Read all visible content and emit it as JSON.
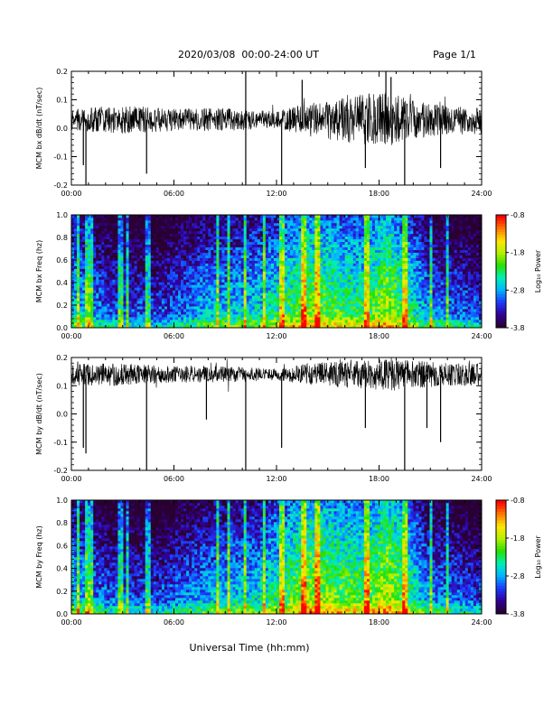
{
  "header": {
    "title": "2020/03/08  00:00-24:00 UT",
    "page": "Page 1/1"
  },
  "xlabel": "Universal Time (hh:mm)",
  "x_ticks": [
    "00:00",
    "06:00",
    "12:00",
    "18:00",
    "24:00"
  ],
  "colors": {
    "trace": "#000000",
    "colormap": [
      "#2a0030",
      "#30009a",
      "#1a3cff",
      "#00b4ff",
      "#00f0b4",
      "#28e000",
      "#b4f000",
      "#ffe600",
      "#ff7800",
      "#ff0000"
    ]
  },
  "chart_data": [
    {
      "type": "line",
      "title": "",
      "xlabel": "Universal Time (hh:mm)",
      "ylabel": "MCM bx dB/dt (nT/sec)",
      "x_range_hours": [
        0,
        24
      ],
      "ylim": [
        -0.2,
        0.2
      ],
      "y_ticks": [
        "-0.2",
        "-0.1",
        "0.0",
        "0.1",
        "0.2"
      ],
      "baseline": 0.03,
      "noise_envelope": [
        {
          "x": 0,
          "y": 0.04
        },
        {
          "x": 3,
          "y": 0.05
        },
        {
          "x": 6,
          "y": 0.04
        },
        {
          "x": 9,
          "y": 0.04
        },
        {
          "x": 12,
          "y": 0.03
        },
        {
          "x": 14,
          "y": 0.06
        },
        {
          "x": 17,
          "y": 0.09
        },
        {
          "x": 18.5,
          "y": 0.1
        },
        {
          "x": 20,
          "y": 0.07
        },
        {
          "x": 22,
          "y": 0.05
        },
        {
          "x": 24,
          "y": 0.04
        }
      ],
      "spikes": [
        {
          "x": 0.7,
          "y": -0.13
        },
        {
          "x": 0.85,
          "y": -0.2
        },
        {
          "x": 4.4,
          "y": -0.16
        },
        {
          "x": 10.2,
          "y": -0.2
        },
        {
          "x": 10.2,
          "y": 0.2
        },
        {
          "x": 12.3,
          "y": -0.2
        },
        {
          "x": 17.2,
          "y": -0.14
        },
        {
          "x": 19.5,
          "y": -0.2
        },
        {
          "x": 21.6,
          "y": -0.14
        },
        {
          "x": 18.4,
          "y": 0.2
        },
        {
          "x": 18.7,
          "y": 0.18
        },
        {
          "x": 13.5,
          "y": 0.17
        }
      ]
    },
    {
      "type": "heatmap",
      "title": "",
      "xlabel": "Universal Time (hh:mm)",
      "ylabel": "MCM bx Freq (hz)",
      "x_range_hours": [
        0,
        24
      ],
      "ylim": [
        0.0,
        1.0
      ],
      "y_ticks": [
        "0.0",
        "0.2",
        "0.4",
        "0.6",
        "0.8",
        "1.0"
      ],
      "colorbar": {
        "label": "Log₁₀ Power",
        "ticks": [
          "-0.8",
          "-1.8",
          "-2.8",
          "-3.8"
        ],
        "range": [
          -3.8,
          -0.8
        ]
      },
      "activity_envelope": [
        {
          "x": 0,
          "v": 0.45
        },
        {
          "x": 2,
          "v": 0.3
        },
        {
          "x": 5,
          "v": 0.25
        },
        {
          "x": 8,
          "v": 0.4
        },
        {
          "x": 11,
          "v": 0.45
        },
        {
          "x": 14,
          "v": 0.65
        },
        {
          "x": 17,
          "v": 0.55
        },
        {
          "x": 18.5,
          "v": 0.7
        },
        {
          "x": 21,
          "v": 0.35
        },
        {
          "x": 24,
          "v": 0.25
        }
      ],
      "bright_lines_hours": [
        0.4,
        0.9,
        1.1,
        2.9,
        3.3,
        4.5,
        8.6,
        9.2,
        10.2,
        11.3,
        12.3,
        13.6,
        14.4,
        17.3,
        19.5,
        21.0,
        22.0
      ]
    },
    {
      "type": "line",
      "title": "",
      "xlabel": "Universal Time (hh:mm)",
      "ylabel": "MCM by dB/dt (nT/sec)",
      "x_range_hours": [
        0,
        24
      ],
      "ylim": [
        -0.2,
        0.2
      ],
      "y_ticks": [
        "-0.2",
        "-0.1",
        "0.0",
        "0.1",
        "0.2"
      ],
      "baseline": 0.14,
      "noise_envelope": [
        {
          "x": 0,
          "y": 0.04
        },
        {
          "x": 3,
          "y": 0.04
        },
        {
          "x": 6,
          "y": 0.03
        },
        {
          "x": 9,
          "y": 0.03
        },
        {
          "x": 12,
          "y": 0.02
        },
        {
          "x": 14,
          "y": 0.04
        },
        {
          "x": 17,
          "y": 0.05
        },
        {
          "x": 18.5,
          "y": 0.06
        },
        {
          "x": 20,
          "y": 0.05
        },
        {
          "x": 22,
          "y": 0.04
        },
        {
          "x": 24,
          "y": 0.04
        }
      ],
      "spikes": [
        {
          "x": 0.7,
          "y": -0.12
        },
        {
          "x": 0.85,
          "y": -0.14
        },
        {
          "x": 4.4,
          "y": -0.2
        },
        {
          "x": 10.2,
          "y": -0.2
        },
        {
          "x": 12.3,
          "y": -0.12
        },
        {
          "x": 17.2,
          "y": -0.05
        },
        {
          "x": 19.5,
          "y": -0.2
        },
        {
          "x": 21.6,
          "y": -0.1
        },
        {
          "x": 20.8,
          "y": -0.05
        },
        {
          "x": 7.9,
          "y": -0.02
        }
      ]
    },
    {
      "type": "heatmap",
      "title": "",
      "xlabel": "Universal Time (hh:mm)",
      "ylabel": "MCM by Freq (hz)",
      "x_range_hours": [
        0,
        24
      ],
      "ylim": [
        0.0,
        1.0
      ],
      "y_ticks": [
        "0.0",
        "0.2",
        "0.4",
        "0.6",
        "0.8",
        "1.0"
      ],
      "colorbar": {
        "label": "Log₁₀ Power",
        "ticks": [
          "-0.8",
          "-1.8",
          "-2.8",
          "-3.8"
        ],
        "range": [
          -3.8,
          -0.8
        ]
      },
      "activity_envelope": [
        {
          "x": 0,
          "v": 0.45
        },
        {
          "x": 2,
          "v": 0.3
        },
        {
          "x": 5,
          "v": 0.25
        },
        {
          "x": 8,
          "v": 0.4
        },
        {
          "x": 11,
          "v": 0.45
        },
        {
          "x": 14,
          "v": 0.7
        },
        {
          "x": 17,
          "v": 0.6
        },
        {
          "x": 18.5,
          "v": 0.75
        },
        {
          "x": 21,
          "v": 0.35
        },
        {
          "x": 24,
          "v": 0.25
        }
      ],
      "bright_lines_hours": [
        0.4,
        0.9,
        1.1,
        2.9,
        3.3,
        4.5,
        8.6,
        9.2,
        10.2,
        11.3,
        12.3,
        13.6,
        14.4,
        17.3,
        19.5,
        21.0,
        22.0
      ]
    }
  ]
}
